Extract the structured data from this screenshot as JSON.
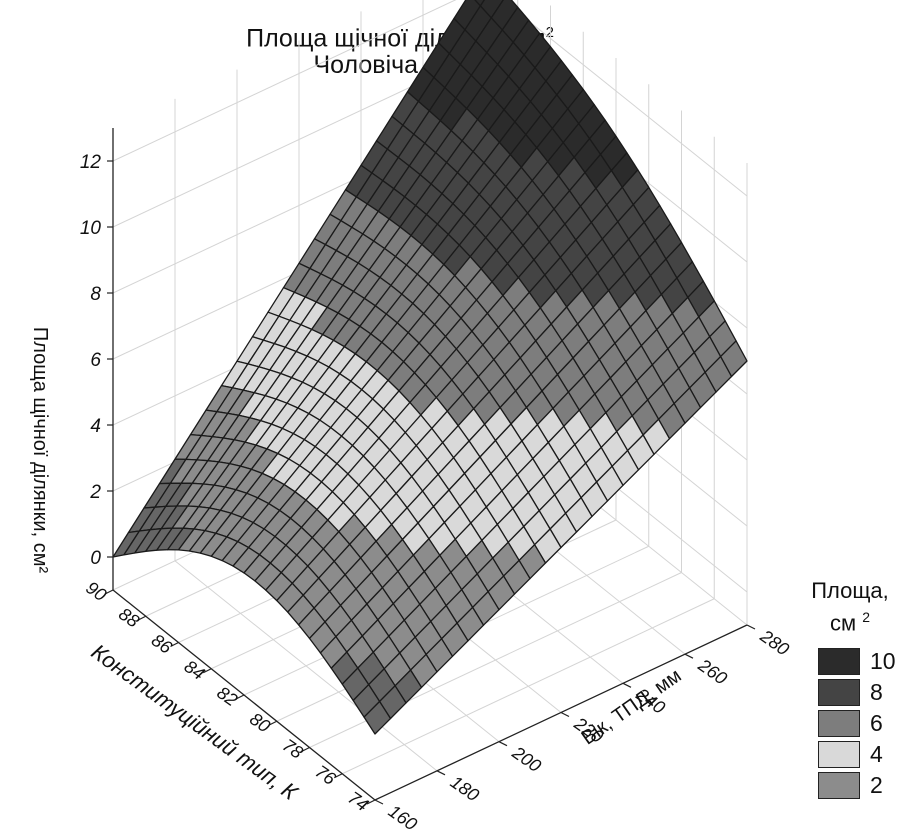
{
  "chart_data": {
    "type": "surface3d",
    "title": "Площа щічної ділянки, см",
    "title_sup": "2",
    "subtitle": "Чоловіча стать",
    "zlabel": "Площа щічної ділянки, см²",
    "xlabel": "Конституційний тип, К",
    "ylabel": "Вік, ТПД, мм",
    "x_ticks": [
      "74",
      "76",
      "78",
      "80",
      "82",
      "84",
      "86",
      "88",
      "90"
    ],
    "y_ticks": [
      "160",
      "180",
      "200",
      "220",
      "240",
      "260",
      "280"
    ],
    "z_ticks": [
      "0",
      "2",
      "4",
      "6",
      "8",
      "10",
      "12"
    ],
    "xlim": [
      74,
      90
    ],
    "ylim": [
      160,
      280
    ],
    "zlim": [
      -1,
      12
    ],
    "corners": [
      {
        "x": 90,
        "y": 160,
        "z": 0
      },
      {
        "x": 74,
        "y": 160,
        "z": 1
      },
      {
        "x": 74,
        "y": 280,
        "z": 7
      },
      {
        "x": 90,
        "y": 280,
        "z": 12.5
      }
    ],
    "legend": {
      "title_line1": "Площа,",
      "title_line2": "см",
      "title_sup": "2",
      "entries": [
        {
          "label": "10",
          "color": "#2b2b2b"
        },
        {
          "label": "8",
          "color": "#444444"
        },
        {
          "label": "6",
          "color": "#7d7d7d"
        },
        {
          "label": "4",
          "color": "#d9d9d9"
        },
        {
          "label": "2",
          "color": "#8c8c8c"
        }
      ]
    }
  }
}
